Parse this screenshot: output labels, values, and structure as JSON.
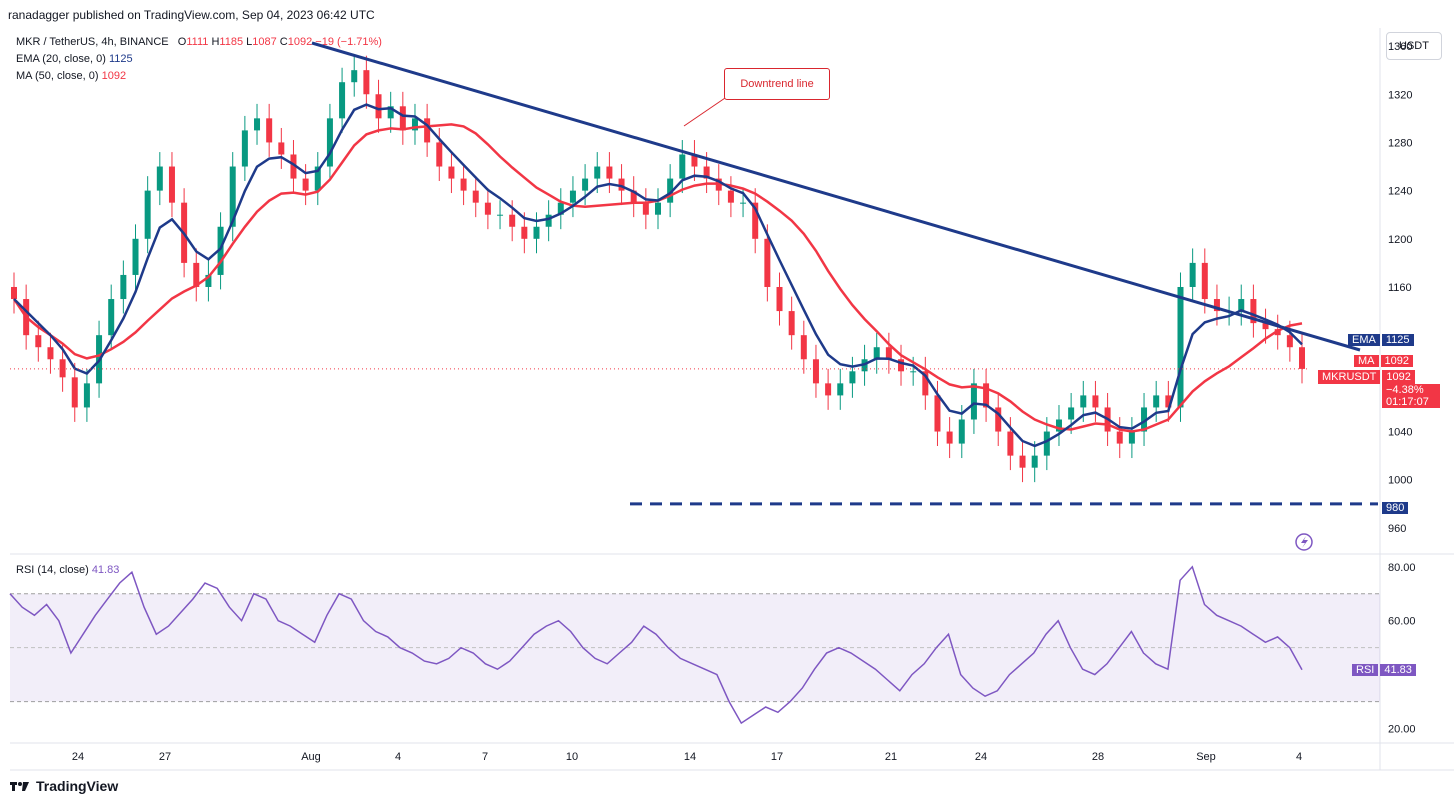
{
  "header": {
    "published": "ranadagger published on TradingView.com, Sep 04, 2023 06:42 UTC"
  },
  "legend": {
    "symbol": "MKR / TetherUS, 4h, BINANCE",
    "ohlc": {
      "o_label": "O",
      "o": "1111",
      "h_label": "H",
      "h": "1185",
      "l_label": "L",
      "l": "1087",
      "c_label": "C",
      "c": "1092",
      "chg": "−19 (−1.71%)"
    },
    "ema": {
      "label": "EMA (20, close, 0)",
      "value": "1125"
    },
    "ma": {
      "label": "MA (50, close, 0)",
      "value": "1092"
    },
    "rsi": {
      "label": "RSI (14, close)",
      "value": "41.83"
    }
  },
  "unit_button": "USDT",
  "annotation": {
    "text": "Downtrend line"
  },
  "price_tags": {
    "ema": {
      "name": "EMA",
      "value": "1125",
      "color": "#1e3a8a"
    },
    "ma": {
      "name": "MA",
      "value": "1092",
      "color": "#f23645"
    },
    "last": {
      "name": "MKRUSDT",
      "value": "1092",
      "change": "−4.38%",
      "countdown": "01:17:07",
      "color": "#f23645"
    },
    "support": {
      "value": "980",
      "color": "#1e3a8a"
    },
    "rsi": {
      "name": "RSI",
      "value": "41.83",
      "color": "#7e57c2"
    }
  },
  "footer": {
    "brand": "TradingView"
  },
  "chart_data": {
    "type": "candlestick",
    "title": "MKR / TetherUS, 4h, BINANCE",
    "price_axis": {
      "ylim": [
        940,
        1375
      ],
      "ticks": [
        "1360",
        "1320",
        "1280",
        "1240",
        "1200",
        "1160",
        "1040",
        "1000",
        "960"
      ]
    },
    "rsi_axis": {
      "ylim": [
        15,
        84
      ],
      "ticks": [
        "80.00",
        "60.00",
        "20.00"
      ],
      "band": [
        30,
        70
      ]
    },
    "x_ticks": [
      "24",
      "27",
      "Aug",
      "4",
      "7",
      "10",
      "14",
      "17",
      "21",
      "24",
      "28",
      "Sep",
      "4"
    ],
    "series": [
      {
        "name": "Price (approx. closes)",
        "color_up": "#089981",
        "color_down": "#f23645",
        "points": [
          1150,
          1120,
          1110,
          1100,
          1085,
          1060,
          1080,
          1120,
          1150,
          1170,
          1200,
          1240,
          1260,
          1230,
          1180,
          1160,
          1170,
          1210,
          1260,
          1290,
          1300,
          1280,
          1270,
          1250,
          1240,
          1260,
          1300,
          1330,
          1340,
          1320,
          1300,
          1310,
          1290,
          1300,
          1280,
          1260,
          1250,
          1240,
          1230,
          1220,
          1220,
          1210,
          1200,
          1210,
          1220,
          1230,
          1240,
          1250,
          1260,
          1250,
          1240,
          1230,
          1220,
          1230,
          1250,
          1270,
          1260,
          1250,
          1240,
          1230,
          1230,
          1200,
          1160,
          1140,
          1120,
          1100,
          1080,
          1070,
          1080,
          1090,
          1100,
          1110,
          1100,
          1090,
          1090,
          1070,
          1040,
          1030,
          1050,
          1080,
          1060,
          1040,
          1020,
          1010,
          1020,
          1040,
          1050,
          1060,
          1070,
          1060,
          1040,
          1030,
          1040,
          1060,
          1070,
          1060,
          1160,
          1180,
          1150,
          1140,
          1140,
          1150,
          1130,
          1125,
          1120,
          1110,
          1092
        ]
      },
      {
        "name": "EMA (20, close, 0)",
        "color": "#1e3a8a"
      },
      {
        "name": "MA (50, close, 0)",
        "color": "#f23645"
      },
      {
        "name": "RSI (14, close)",
        "color": "#7e57c2",
        "points": [
          70,
          65,
          62,
          66,
          60,
          48,
          55,
          62,
          68,
          74,
          78,
          65,
          55,
          58,
          63,
          68,
          74,
          72,
          65,
          60,
          70,
          68,
          60,
          58,
          55,
          52,
          62,
          70,
          68,
          60,
          56,
          54,
          50,
          48,
          45,
          44,
          46,
          50,
          48,
          44,
          42,
          45,
          50,
          55,
          58,
          60,
          56,
          50,
          46,
          44,
          48,
          52,
          58,
          55,
          50,
          46,
          44,
          42,
          40,
          30,
          22,
          25,
          28,
          26,
          30,
          35,
          42,
          48,
          50,
          48,
          45,
          42,
          38,
          34,
          40,
          44,
          50,
          55,
          40,
          35,
          32,
          34,
          40,
          44,
          48,
          55,
          60,
          50,
          42,
          40,
          44,
          50,
          56,
          48,
          44,
          42,
          75,
          80,
          66,
          62,
          60,
          58,
          55,
          52,
          54,
          50,
          41.83
        ]
      }
    ],
    "annotations": {
      "downtrend_line": "Downtrend line",
      "support_level": 980
    }
  }
}
